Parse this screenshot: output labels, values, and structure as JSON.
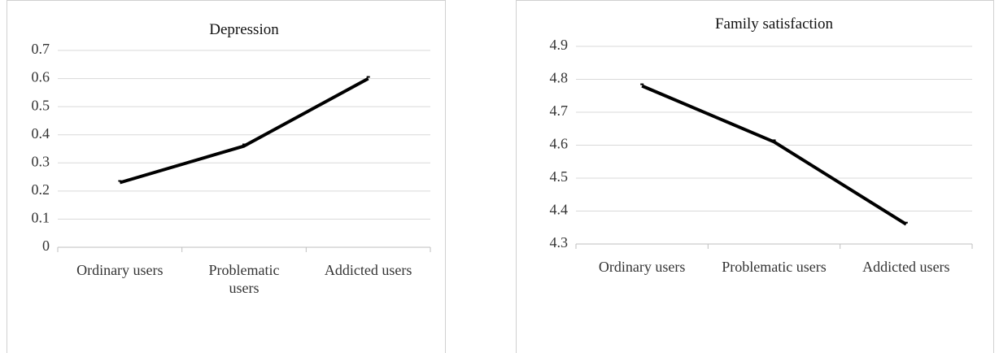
{
  "chart_data": [
    {
      "type": "line",
      "title": "Depression",
      "categories": [
        "Ordinary users",
        "Problematic users",
        "Addicted users"
      ],
      "values": [
        0.23,
        0.36,
        0.6
      ],
      "ylim": [
        0,
        0.7
      ],
      "yticks": [
        "0",
        "0.1",
        "0.2",
        "0.3",
        "0.4",
        "0.5",
        "0.6",
        "0.7"
      ],
      "grid": true,
      "legend": "none"
    },
    {
      "type": "line",
      "title": "Family satisfaction",
      "categories": [
        "Ordinary users",
        "Problematic users",
        "Addicted users"
      ],
      "values": [
        4.78,
        4.61,
        4.36
      ],
      "ylim": [
        4.3,
        4.9
      ],
      "yticks": [
        "4.3",
        "4.4",
        "4.5",
        "4.6",
        "4.7",
        "4.8",
        "4.9"
      ],
      "grid": true,
      "legend": "none"
    }
  ]
}
